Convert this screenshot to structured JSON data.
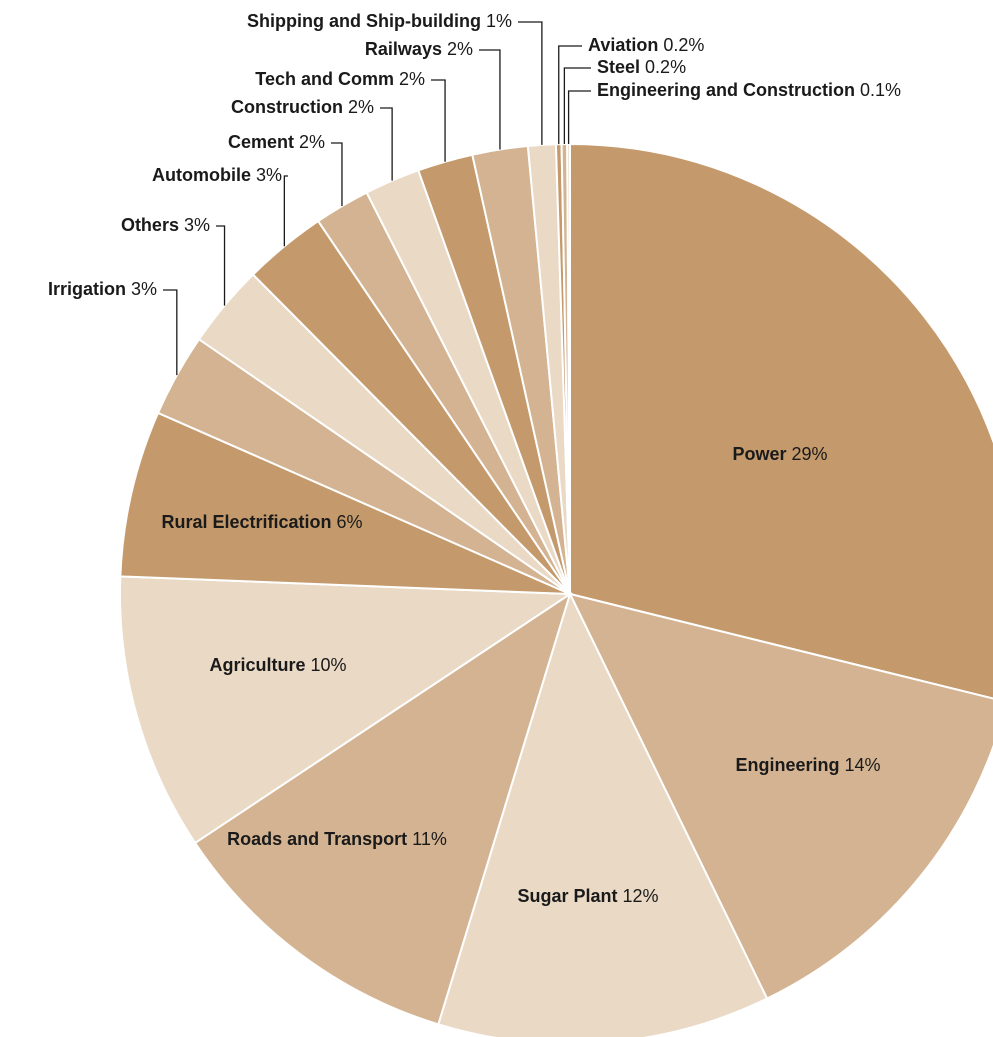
{
  "chart_data": {
    "type": "pie",
    "categories": [
      "Power",
      "Engineering",
      "Sugar Plant",
      "Roads and Transport",
      "Agriculture",
      "Rural Electrification",
      "Irrigation",
      "Others",
      "Automobile",
      "Cement",
      "Construction",
      "Tech and Comm",
      "Railways",
      "Shipping and Ship-building",
      "Aviation",
      "Steel",
      "Engineering and Construction"
    ],
    "values": [
      29,
      14,
      12,
      11,
      10,
      6,
      3,
      3,
      3,
      2,
      2,
      2,
      2,
      1,
      0.2,
      0.2,
      0.1
    ],
    "value_labels": [
      "29%",
      "14%",
      "12%",
      "11%",
      "10%",
      "6%",
      "3%",
      "3%",
      "3%",
      "2%",
      "2%",
      "2%",
      "2%",
      "1%",
      "0.2%",
      "0.2%",
      "0.1%"
    ],
    "colors": [
      "#c49a6c",
      "#d3b391",
      "#e9d9c5",
      "#d3b391",
      "#e9d9c5",
      "#c49a6c",
      "#d3b391",
      "#e9d9c5",
      "#c49a6c",
      "#d3b391",
      "#e9d9c5",
      "#c49a6c",
      "#d3b391",
      "#e9d9c5",
      "#c49a6c",
      "#d3b391",
      "#e9d9c5"
    ]
  }
}
